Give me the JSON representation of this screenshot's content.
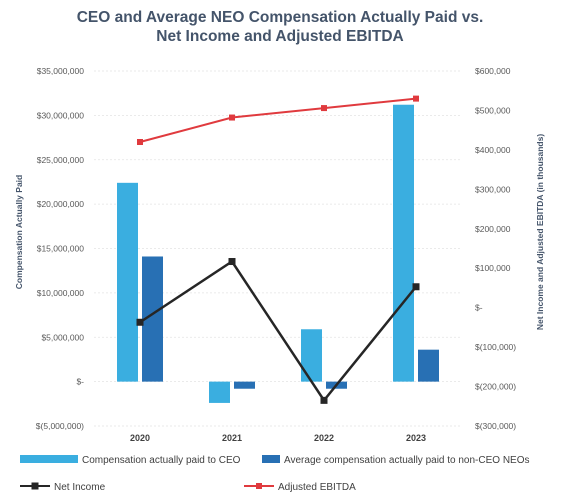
{
  "chart_data": {
    "type": "bar",
    "title_line1": "CEO and Average NEO Compensation Actually Paid vs.",
    "title_line2": "Net Income and Adjusted EBITDA",
    "categories": [
      "2020",
      "2021",
      "2022",
      "2023"
    ],
    "y_left": {
      "label": "Compensation Actually Paid",
      "lim": [
        -5000000,
        35000000
      ],
      "ticks": [
        -5000000,
        0,
        5000000,
        10000000,
        15000000,
        20000000,
        25000000,
        30000000,
        35000000
      ],
      "tick_labels": [
        "$(5,000,000)",
        "$-",
        "$5,000,000",
        "$10,000,000",
        "$15,000,000",
        "$20,000,000",
        "$25,000,000",
        "$30,000,000",
        "$35,000,000"
      ]
    },
    "y_right": {
      "label": "Net Income and Adjusted EBITDA (in thousands)",
      "lim": [
        -300000,
        600000
      ],
      "ticks": [
        -300000,
        -200000,
        -100000,
        0,
        100000,
        200000,
        300000,
        400000,
        500000,
        600000
      ],
      "tick_labels": [
        "$(300,000)",
        "$(200,000)",
        "$(100,000)",
        "$-",
        "$100,000",
        "$200,000",
        "$300,000",
        "$400,000",
        "$500,000",
        "$600,000"
      ]
    },
    "bar_series": [
      {
        "name": "Compensation actually paid to CEO",
        "color": "#3aaee0",
        "values": [
          22400000,
          -2400000,
          5900000,
          31200000
        ]
      },
      {
        "name": "Average compensation actually paid to non-CEO NEOs",
        "color": "#2870b4",
        "values": [
          14100000,
          -800000,
          -800000,
          3600000
        ]
      }
    ],
    "line_series": [
      {
        "name": "Net Income",
        "color": "#262626",
        "marker": "square",
        "values": [
          -37000,
          117000,
          -235000,
          53000
        ]
      },
      {
        "name": "Adjusted EBITDA",
        "color": "#e03a3e",
        "marker": "square",
        "values": [
          420000,
          482000,
          506000,
          530000
        ]
      }
    ],
    "grid": true,
    "legend_position": "bottom"
  }
}
